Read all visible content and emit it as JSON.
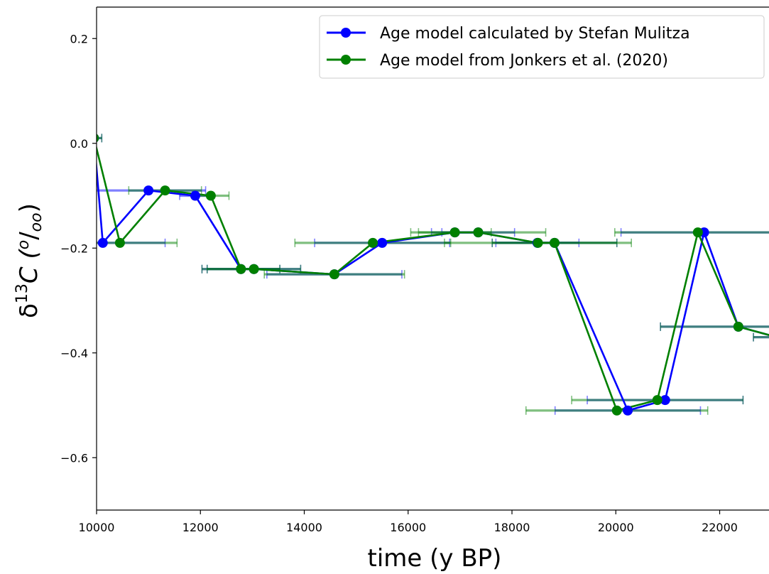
{
  "chart_data": {
    "type": "line",
    "title": "",
    "xlabel": "time (y BP)",
    "ylabel": {
      "base": "δ",
      "sup": "13",
      "mid": "C  (",
      "sup2": "o",
      "slash": "/",
      "sub": "oo",
      "end": ")"
    },
    "xlim": [
      10000,
      22950
    ],
    "ylim": [
      -0.7,
      0.26
    ],
    "xticks": [
      10000,
      12000,
      14000,
      16000,
      18000,
      20000,
      22000
    ],
    "xtick_labels": [
      "10000",
      "12000",
      "14000",
      "16000",
      "18000",
      "20000",
      "22000"
    ],
    "yticks": [
      -0.6,
      -0.4,
      -0.2,
      0.0,
      0.2
    ],
    "ytick_labels": [
      "−0.6",
      "−0.4",
      "−0.2",
      "0.0",
      "0.2"
    ],
    "grid": false,
    "legend_position": "top-right",
    "series": [
      {
        "name": "Age model calculated by Stefan Mulitza",
        "color": "#0000ff",
        "x": [
          9950,
          10120,
          11000,
          11900,
          12780,
          13030,
          14580,
          15500,
          16900,
          17350,
          18490,
          18820,
          20230,
          20950,
          21700,
          22360,
          23100
        ],
        "y": [
          0.01,
          -0.19,
          -0.09,
          -0.1,
          -0.24,
          -0.24,
          -0.25,
          -0.19,
          -0.17,
          -0.17,
          -0.19,
          -0.19,
          -0.51,
          -0.49,
          -0.17,
          -0.35,
          -0.37
        ],
        "xerr": [
          150,
          1200,
          1100,
          300,
          750,
          900,
          1300,
          1300,
          450,
          700,
          800,
          1200,
          1400,
          1500,
          1600,
          1500,
          450
        ]
      },
      {
        "name": "Age model from Jonkers et al. (2020)",
        "color": "#008000",
        "x": [
          9950,
          10450,
          11320,
          12200,
          12780,
          13030,
          14580,
          15320,
          16900,
          17350,
          18500,
          18820,
          20020,
          20800,
          21580,
          22360,
          23100
        ],
        "y": [
          0.01,
          -0.19,
          -0.09,
          -0.1,
          -0.24,
          -0.24,
          -0.25,
          -0.19,
          -0.17,
          -0.17,
          -0.19,
          -0.19,
          -0.51,
          -0.49,
          -0.17,
          -0.35,
          -0.37
        ],
        "xerr": [
          150,
          1100,
          700,
          350,
          750,
          900,
          1350,
          1500,
          700,
          1300,
          1800,
          1200,
          1750,
          1650,
          1600,
          1500,
          450
        ]
      }
    ]
  }
}
